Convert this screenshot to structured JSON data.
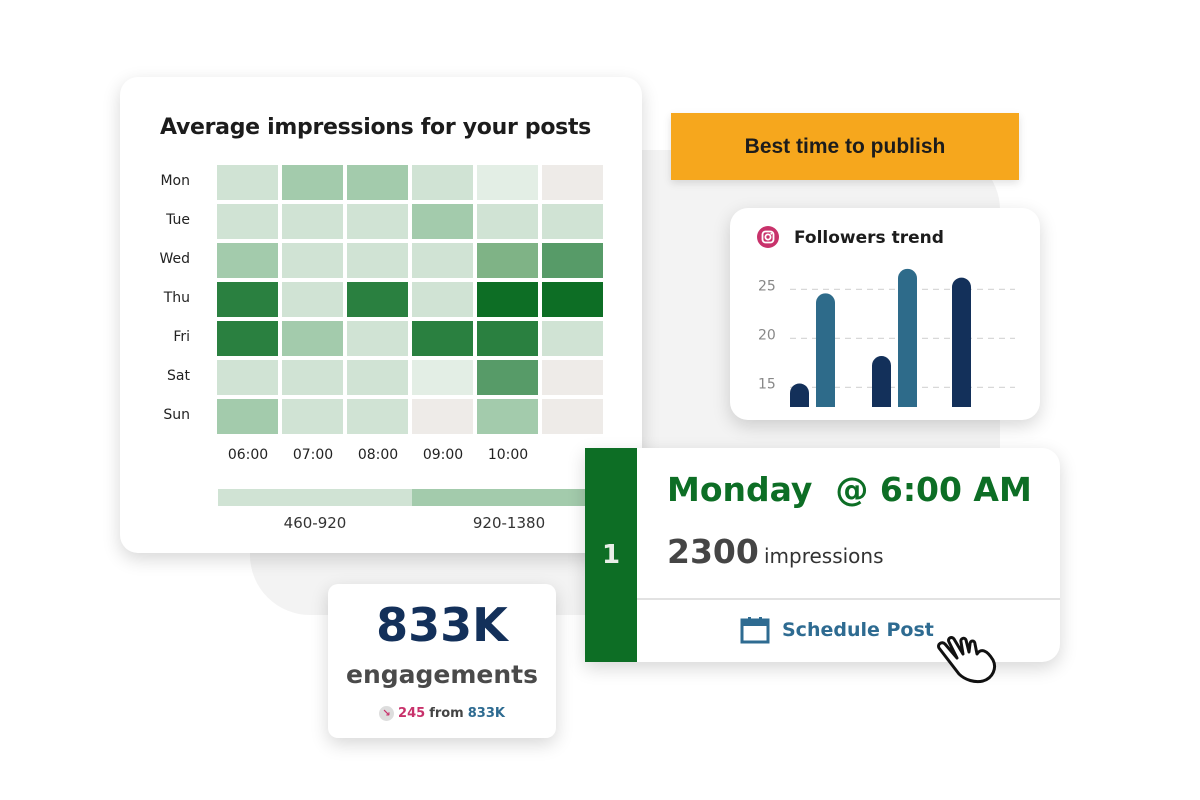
{
  "heatmap_card": {
    "title": "Average impressions for your posts",
    "rows": [
      "Mon",
      "Tue",
      "Wed",
      "Thu",
      "Fri",
      "Sat",
      "Sun"
    ],
    "columns": [
      "06:00",
      "07:00",
      "08:00",
      "09:00",
      "10:00",
      ""
    ],
    "levels": [
      [
        2,
        3,
        3,
        2,
        1,
        0
      ],
      [
        2,
        2,
        2,
        3,
        2,
        2
      ],
      [
        3,
        2,
        2,
        2,
        4,
        5
      ],
      [
        6,
        2,
        6,
        2,
        7,
        7
      ],
      [
        6,
        3,
        2,
        6,
        6,
        2
      ],
      [
        2,
        2,
        2,
        1,
        5,
        0
      ],
      [
        3,
        2,
        2,
        0,
        3,
        0
      ]
    ],
    "palette": [
      "#eeebe8",
      "#e3eee5",
      "#d0e3d4",
      "#a3cbac",
      "#7fb386",
      "#579b68",
      "#2a8040",
      "#0d6e25"
    ],
    "legend": [
      {
        "label": "460-920",
        "color": "#d0e3d4"
      },
      {
        "label": "920-1380",
        "color": "#a3cbac"
      }
    ]
  },
  "best_time_button": "Best time to publish",
  "followers": {
    "title": "Followers trend",
    "icon": "instagram-icon",
    "chart_data": {
      "type": "bar",
      "title": "Followers trend",
      "y_ticks": [
        15,
        20,
        25
      ],
      "ylim": [
        13,
        28
      ],
      "grid": "dashed horizontal",
      "groups": [
        [
          {
            "value": 15.4,
            "color": "#13305a"
          },
          {
            "value": 24.6,
            "color": "#2e6b8a"
          }
        ],
        [
          {
            "value": 18.2,
            "color": "#13305a"
          },
          {
            "value": 27.1,
            "color": "#2e6b8a"
          }
        ],
        [
          {
            "value": 26.2,
            "color": "#13305a"
          }
        ]
      ]
    }
  },
  "best_time": {
    "rank": "1",
    "when": "Monday  @ 6:00 AM",
    "impressions_value": "2300",
    "impressions_label": "impressions",
    "schedule_label": "Schedule Post"
  },
  "engagements": {
    "value": "833K",
    "label": "engagements",
    "delta_value": "245",
    "delta_from": "from",
    "delta_base": "833K",
    "delta_direction": "down"
  },
  "colors": {
    "accent_green": "#0d6e25",
    "orange": "#f6a71d",
    "navy": "#13305a",
    "teal": "#2e6b8a",
    "pink": "#c8326b"
  }
}
